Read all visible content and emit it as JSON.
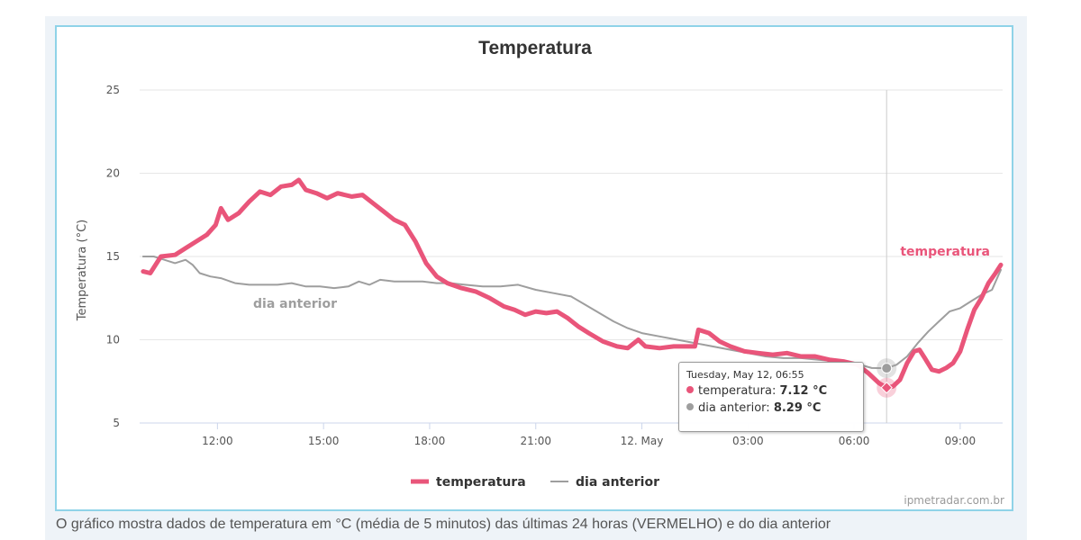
{
  "caption": "O gráfico mostra dados de temperatura em °C (média de 5 minutos) das últimas 24 horas (VERMELHO) e do dia anterior",
  "credit": "ipmetradar.com.br",
  "tooltip": {
    "date": "Tuesday, May 12, 06:55",
    "rows": [
      {
        "name": "temperatura",
        "sep": ": ",
        "value": "7.12 °C",
        "color": "#e9557a"
      },
      {
        "name": "dia anterior",
        "sep": ": ",
        "value": "8.29 °C",
        "color": "#9e9e9e"
      }
    ]
  },
  "chart_data": {
    "type": "line",
    "title": "Temperatura",
    "ylabel": "Temperatura (°C)",
    "xlabel": "",
    "ylim": [
      5,
      25
    ],
    "yticks": [
      5,
      10,
      15,
      20,
      25
    ],
    "x_unit": "hours since 12:00 (May 11)",
    "xlim": [
      -2.2,
      22.2
    ],
    "xticks": [
      {
        "x": 0,
        "label": "12:00"
      },
      {
        "x": 3,
        "label": "15:00"
      },
      {
        "x": 6,
        "label": "18:00"
      },
      {
        "x": 9,
        "label": "21:00"
      },
      {
        "x": 12,
        "label": "12. May"
      },
      {
        "x": 15,
        "label": "03:00"
      },
      {
        "x": 18,
        "label": "06:00"
      },
      {
        "x": 21,
        "label": "09:00"
      }
    ],
    "grid": true,
    "legend_position": "bottom",
    "crosshair_x": 18.92,
    "series": [
      {
        "name": "temperatura",
        "color": "#e9557a",
        "inline_label": "temperatura",
        "points": [
          [
            -2.1,
            14.1
          ],
          [
            -1.9,
            14.0
          ],
          [
            -1.6,
            15.0
          ],
          [
            -1.2,
            15.1
          ],
          [
            -0.9,
            15.5
          ],
          [
            -0.6,
            15.9
          ],
          [
            -0.3,
            16.3
          ],
          [
            -0.05,
            16.9
          ],
          [
            0.1,
            17.9
          ],
          [
            0.3,
            17.2
          ],
          [
            0.6,
            17.6
          ],
          [
            0.9,
            18.3
          ],
          [
            1.2,
            18.9
          ],
          [
            1.5,
            18.7
          ],
          [
            1.8,
            19.2
          ],
          [
            2.1,
            19.3
          ],
          [
            2.3,
            19.6
          ],
          [
            2.5,
            19.0
          ],
          [
            2.8,
            18.8
          ],
          [
            3.1,
            18.5
          ],
          [
            3.4,
            18.8
          ],
          [
            3.8,
            18.6
          ],
          [
            4.1,
            18.7
          ],
          [
            4.4,
            18.2
          ],
          [
            4.7,
            17.7
          ],
          [
            5.0,
            17.2
          ],
          [
            5.3,
            16.9
          ],
          [
            5.6,
            15.9
          ],
          [
            5.9,
            14.6
          ],
          [
            6.2,
            13.8
          ],
          [
            6.5,
            13.4
          ],
          [
            6.9,
            13.1
          ],
          [
            7.3,
            12.9
          ],
          [
            7.7,
            12.5
          ],
          [
            8.1,
            12.0
          ],
          [
            8.4,
            11.8
          ],
          [
            8.7,
            11.5
          ],
          [
            9.0,
            11.7
          ],
          [
            9.3,
            11.6
          ],
          [
            9.6,
            11.7
          ],
          [
            9.9,
            11.3
          ],
          [
            10.2,
            10.8
          ],
          [
            10.5,
            10.4
          ],
          [
            10.9,
            9.9
          ],
          [
            11.3,
            9.6
          ],
          [
            11.6,
            9.5
          ],
          [
            11.9,
            10.0
          ],
          [
            12.1,
            9.6
          ],
          [
            12.5,
            9.5
          ],
          [
            12.9,
            9.6
          ],
          [
            13.2,
            9.6
          ],
          [
            13.5,
            9.6
          ],
          [
            13.6,
            10.6
          ],
          [
            13.9,
            10.4
          ],
          [
            14.2,
            9.9
          ],
          [
            14.5,
            9.6
          ],
          [
            14.9,
            9.3
          ],
          [
            15.3,
            9.2
          ],
          [
            15.7,
            9.1
          ],
          [
            16.1,
            9.2
          ],
          [
            16.5,
            9.0
          ],
          [
            16.9,
            9.0
          ],
          [
            17.3,
            8.8
          ],
          [
            17.7,
            8.7
          ],
          [
            18.1,
            8.5
          ],
          [
            18.4,
            8.0
          ],
          [
            18.7,
            7.4
          ],
          [
            18.92,
            7.12
          ],
          [
            19.1,
            7.2
          ],
          [
            19.3,
            7.6
          ],
          [
            19.5,
            8.6
          ],
          [
            19.7,
            9.3
          ],
          [
            19.85,
            9.4
          ],
          [
            20.0,
            8.9
          ],
          [
            20.2,
            8.2
          ],
          [
            20.4,
            8.1
          ],
          [
            20.6,
            8.3
          ],
          [
            20.8,
            8.6
          ],
          [
            21.0,
            9.3
          ],
          [
            21.2,
            10.6
          ],
          [
            21.4,
            11.8
          ],
          [
            21.6,
            12.5
          ],
          [
            21.8,
            13.4
          ],
          [
            22.0,
            14.0
          ],
          [
            22.15,
            14.5
          ]
        ]
      },
      {
        "name": "dia anterior",
        "color": "#9e9e9e",
        "inline_label": "dia anterior",
        "points": [
          [
            -2.1,
            15.0
          ],
          [
            -1.8,
            15.0
          ],
          [
            -1.5,
            14.8
          ],
          [
            -1.2,
            14.6
          ],
          [
            -0.9,
            14.8
          ],
          [
            -0.7,
            14.5
          ],
          [
            -0.5,
            14.0
          ],
          [
            -0.2,
            13.8
          ],
          [
            0.1,
            13.7
          ],
          [
            0.5,
            13.4
          ],
          [
            0.9,
            13.3
          ],
          [
            1.3,
            13.3
          ],
          [
            1.7,
            13.3
          ],
          [
            2.1,
            13.4
          ],
          [
            2.5,
            13.2
          ],
          [
            2.9,
            13.2
          ],
          [
            3.3,
            13.1
          ],
          [
            3.7,
            13.2
          ],
          [
            4.0,
            13.5
          ],
          [
            4.3,
            13.3
          ],
          [
            4.6,
            13.6
          ],
          [
            5.0,
            13.5
          ],
          [
            5.4,
            13.5
          ],
          [
            5.8,
            13.5
          ],
          [
            6.2,
            13.4
          ],
          [
            6.6,
            13.4
          ],
          [
            7.0,
            13.3
          ],
          [
            7.5,
            13.2
          ],
          [
            8.0,
            13.2
          ],
          [
            8.5,
            13.3
          ],
          [
            9.0,
            13.0
          ],
          [
            9.5,
            12.8
          ],
          [
            10.0,
            12.6
          ],
          [
            10.4,
            12.1
          ],
          [
            10.8,
            11.6
          ],
          [
            11.2,
            11.1
          ],
          [
            11.6,
            10.7
          ],
          [
            12.0,
            10.4
          ],
          [
            12.5,
            10.2
          ],
          [
            13.0,
            10.0
          ],
          [
            13.5,
            9.8
          ],
          [
            14.0,
            9.6
          ],
          [
            14.5,
            9.4
          ],
          [
            15.0,
            9.2
          ],
          [
            15.5,
            9.0
          ],
          [
            16.0,
            8.9
          ],
          [
            16.5,
            8.9
          ],
          [
            17.0,
            8.8
          ],
          [
            17.5,
            8.7
          ],
          [
            18.0,
            8.6
          ],
          [
            18.5,
            8.3
          ],
          [
            18.92,
            8.29
          ],
          [
            19.2,
            8.5
          ],
          [
            19.5,
            9.0
          ],
          [
            19.8,
            9.8
          ],
          [
            20.1,
            10.5
          ],
          [
            20.4,
            11.1
          ],
          [
            20.7,
            11.7
          ],
          [
            21.0,
            11.9
          ],
          [
            21.3,
            12.3
          ],
          [
            21.6,
            12.7
          ],
          [
            21.9,
            13.0
          ],
          [
            22.15,
            14.2
          ]
        ]
      }
    ]
  }
}
